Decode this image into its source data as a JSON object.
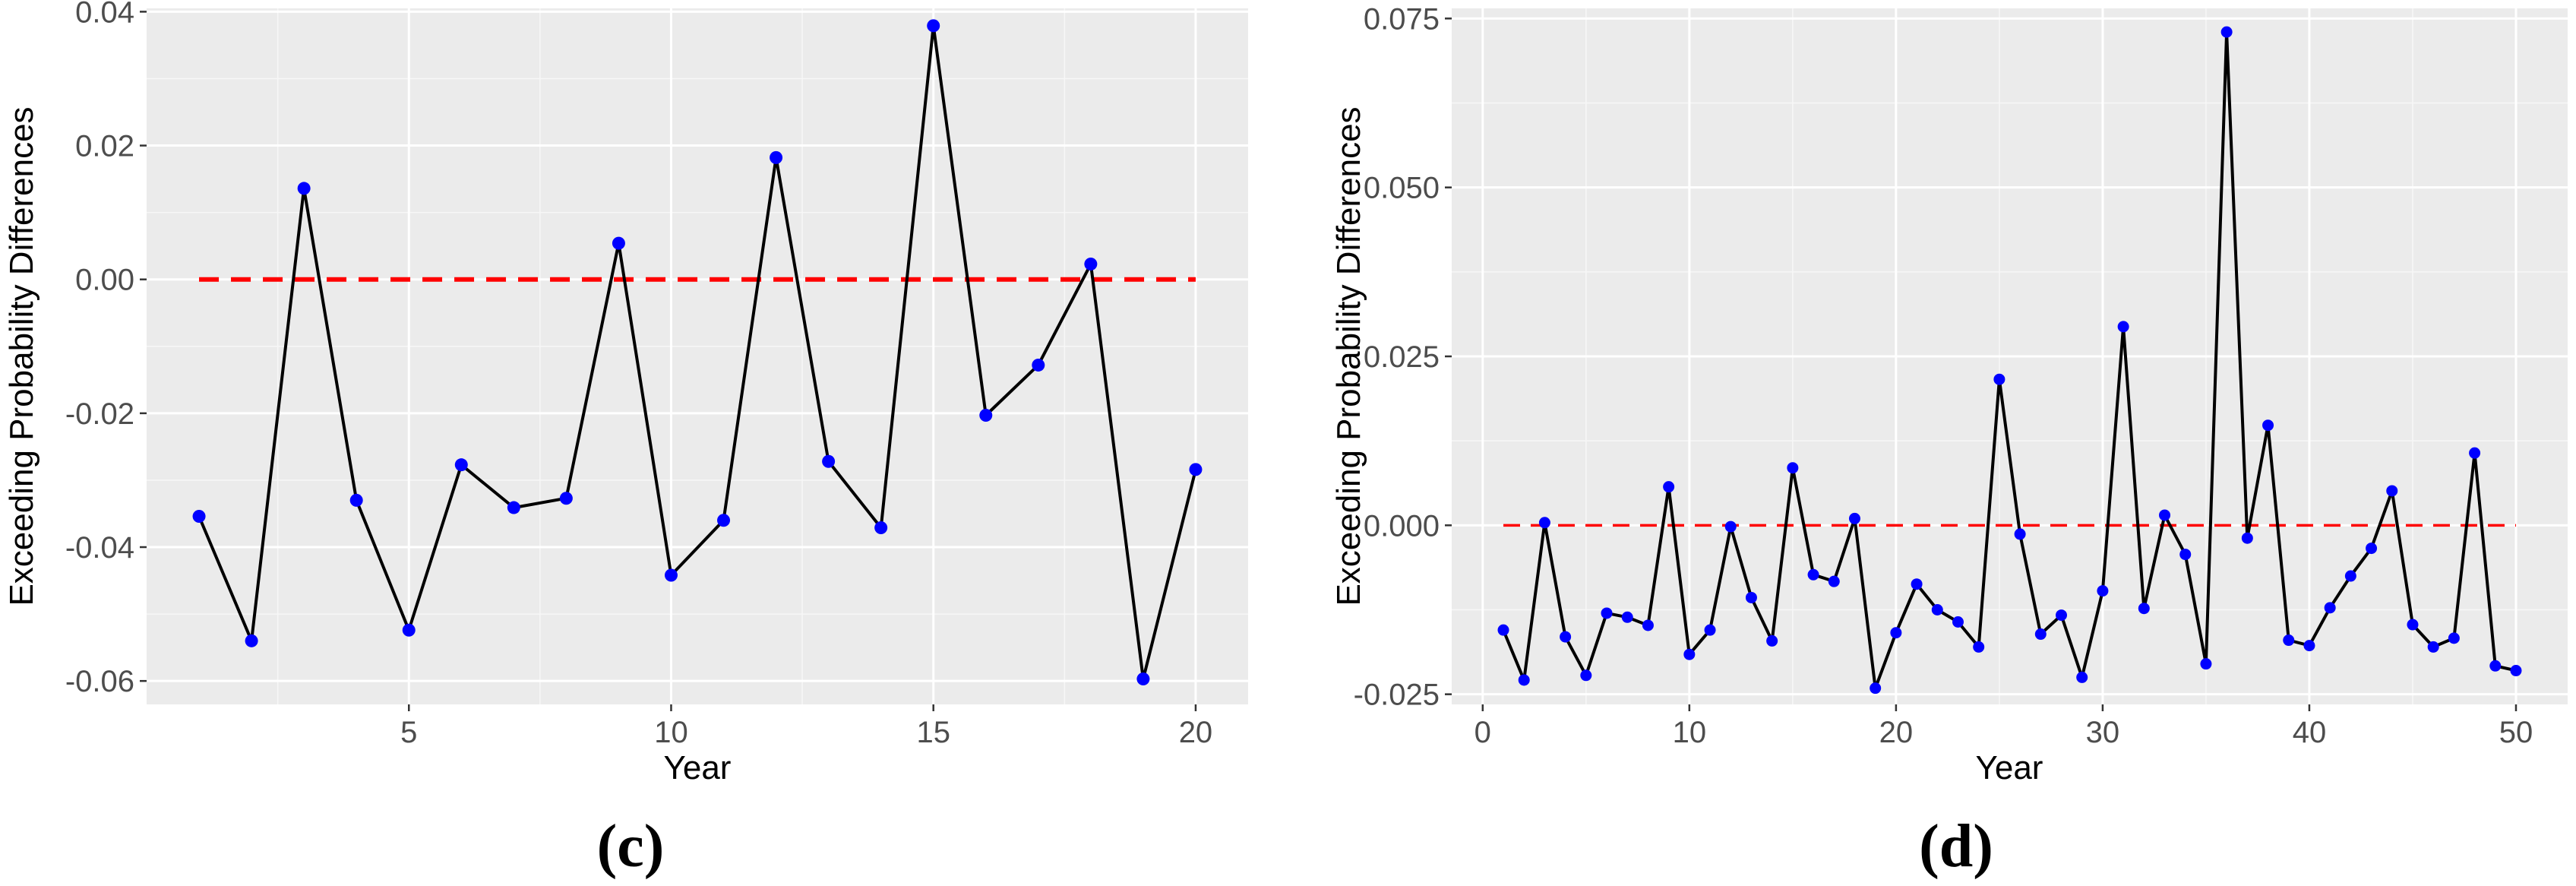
{
  "chart_data": [
    {
      "type": "line",
      "panel_label": "(c)",
      "xlabel": "Year",
      "ylabel": "Exceeding Probability Differences",
      "xlim": [
        0,
        21
      ],
      "ylim": [
        -0.0635,
        0.0405
      ],
      "x_ticks": [
        5,
        10,
        15,
        20
      ],
      "x_tick_labels": [
        "5",
        "10",
        "15",
        "20"
      ],
      "y_ticks": [
        -0.06,
        -0.04,
        -0.02,
        0.0,
        0.02,
        0.04
      ],
      "y_tick_labels": [
        "-0.06",
        "-0.04",
        "-0.02",
        "0.00",
        "0.02",
        "0.04"
      ],
      "reference_line": {
        "y": 0.0,
        "color": "#ff0000",
        "style": "dashed"
      },
      "line_color": "#000000",
      "point_color": "#0000ff",
      "panel_background": "#ebebeb",
      "grid": true,
      "x": [
        1,
        2,
        3,
        4,
        5,
        6,
        7,
        8,
        9,
        10,
        11,
        12,
        13,
        14,
        15,
        16,
        17,
        18,
        19,
        20
      ],
      "values": [
        -0.0354,
        -0.054,
        0.0136,
        -0.033,
        -0.0524,
        -0.0277,
        -0.0341,
        -0.0327,
        0.0054,
        -0.0442,
        -0.036,
        0.0182,
        -0.0272,
        -0.0371,
        0.0379,
        -0.0203,
        -0.0128,
        0.0023,
        -0.0597,
        -0.0284
      ]
    },
    {
      "type": "line",
      "panel_label": "(d)",
      "xlabel": "Year",
      "ylabel": "Exceeding Probability Differences",
      "xlim": [
        -1.5,
        52.5
      ],
      "ylim": [
        -0.0265,
        0.0765
      ],
      "x_ticks": [
        0,
        10,
        20,
        30,
        40,
        50
      ],
      "x_tick_labels": [
        "0",
        "10",
        "20",
        "30",
        "40",
        "50"
      ],
      "y_ticks": [
        -0.025,
        0.0,
        0.025,
        0.05,
        0.075
      ],
      "y_tick_labels": [
        "-0.025",
        "0.000",
        "0.025",
        "0.050",
        "0.075"
      ],
      "reference_line": {
        "y": 0.0,
        "color": "#ff0000",
        "style": "dashed"
      },
      "line_color": "#000000",
      "point_color": "#0000ff",
      "panel_background": "#ebebeb",
      "grid": true,
      "x": [
        1,
        2,
        3,
        4,
        5,
        6,
        7,
        8,
        9,
        10,
        11,
        12,
        13,
        14,
        15,
        16,
        17,
        18,
        19,
        20,
        21,
        22,
        23,
        24,
        25,
        26,
        27,
        28,
        29,
        30,
        31,
        32,
        33,
        34,
        35,
        36,
        37,
        38,
        39,
        40,
        41,
        42,
        43,
        44,
        45,
        46,
        47,
        48,
        49,
        50
      ],
      "values": [
        -0.0155,
        -0.0229,
        0.0004,
        -0.0165,
        -0.0222,
        -0.013,
        -0.0136,
        -0.0148,
        0.0057,
        -0.0191,
        -0.0155,
        -0.0002,
        -0.0107,
        -0.0171,
        0.0085,
        -0.0073,
        -0.0083,
        0.001,
        -0.0241,
        -0.0159,
        -0.0087,
        -0.0125,
        -0.0143,
        -0.018,
        0.0216,
        -0.0013,
        -0.0161,
        -0.0133,
        -0.0225,
        -0.0097,
        0.0294,
        -0.0123,
        0.0015,
        -0.0043,
        -0.0205,
        0.073,
        -0.0019,
        0.0148,
        -0.017,
        -0.0178,
        -0.0122,
        -0.0075,
        -0.0034,
        0.0051,
        -0.0147,
        -0.018,
        -0.0167,
        0.0107,
        -0.0208,
        -0.0215
      ]
    }
  ]
}
